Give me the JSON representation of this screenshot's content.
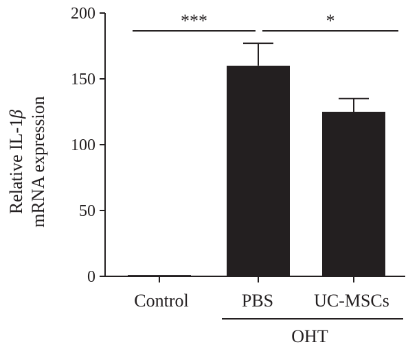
{
  "chart_data": {
    "type": "bar",
    "categories": [
      "Control",
      "PBS",
      "UC-MSCs"
    ],
    "values": [
      1,
      160,
      125
    ],
    "errors": [
      0,
      17,
      10
    ],
    "ylabel_line1": "Relative IL-1",
    "ylabel_symbol": "β",
    "ylabel_line2": "mRNA expression",
    "ylim": [
      0,
      200
    ],
    "yticks": [
      0,
      50,
      100,
      150,
      200
    ],
    "group_label": "OHT",
    "group_members": [
      1,
      2
    ],
    "significance": [
      {
        "from": 0,
        "to": 1,
        "label": "***"
      },
      {
        "from": 1,
        "to": 2,
        "label": "*"
      }
    ],
    "bar_color": "#231f20",
    "grid": false,
    "legend": "none"
  }
}
